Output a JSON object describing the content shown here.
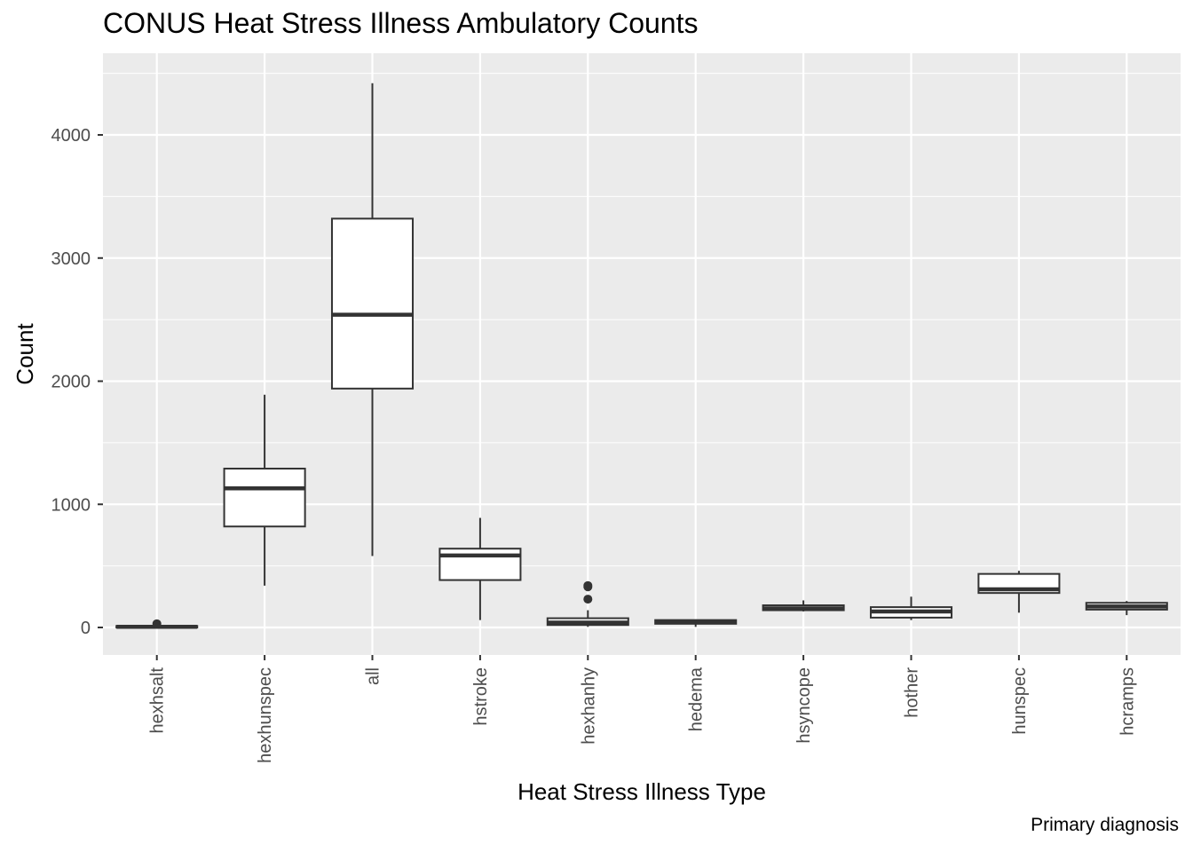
{
  "chart_data": {
    "type": "boxplot",
    "title": "CONUS Heat Stress Illness Ambulatory Counts",
    "caption": "Primary diagnosis",
    "xlabel": "Heat Stress Illness Type",
    "ylabel": "Count",
    "ylim": [
      -220,
      4500
    ],
    "yticks": [
      0,
      1000,
      2000,
      3000,
      4000
    ],
    "grid": true,
    "background": "#ebebeb",
    "grid_color": "#ffffff",
    "box_fill": "#ffffff",
    "line_color": "#333333",
    "categories": [
      "hexhsalt",
      "hexhunspec",
      "all",
      "hstroke",
      "hexhanhy",
      "hedema",
      "hsyncope",
      "hother",
      "hunspec",
      "hcramps"
    ],
    "boxes": [
      {
        "category": "hexhsalt",
        "min": 0,
        "q1": 0,
        "median": 5,
        "q3": 12,
        "max": 25,
        "outliers": [
          30
        ]
      },
      {
        "category": "hexhunspec",
        "min": 340,
        "q1": 820,
        "median": 1130,
        "q3": 1290,
        "max": 1890,
        "outliers": []
      },
      {
        "category": "all",
        "min": 580,
        "q1": 1940,
        "median": 2540,
        "q3": 3320,
        "max": 4420,
        "outliers": []
      },
      {
        "category": "hstroke",
        "min": 60,
        "q1": 385,
        "median": 585,
        "q3": 640,
        "max": 890,
        "outliers": []
      },
      {
        "category": "hexhanhy",
        "min": 5,
        "q1": 20,
        "median": 40,
        "q3": 75,
        "max": 140,
        "outliers": [
          230,
          330,
          340
        ]
      },
      {
        "category": "hedema",
        "min": 5,
        "q1": 30,
        "median": 45,
        "q3": 60,
        "max": 65,
        "outliers": []
      },
      {
        "category": "hsyncope",
        "min": 130,
        "q1": 140,
        "median": 155,
        "q3": 180,
        "max": 220,
        "outliers": []
      },
      {
        "category": "hother",
        "min": 60,
        "q1": 80,
        "median": 130,
        "q3": 165,
        "max": 250,
        "outliers": []
      },
      {
        "category": "hunspec",
        "min": 120,
        "q1": 280,
        "median": 310,
        "q3": 435,
        "max": 460,
        "outliers": []
      },
      {
        "category": "hcramps",
        "min": 100,
        "q1": 145,
        "median": 170,
        "q3": 200,
        "max": 215,
        "outliers": []
      }
    ]
  }
}
